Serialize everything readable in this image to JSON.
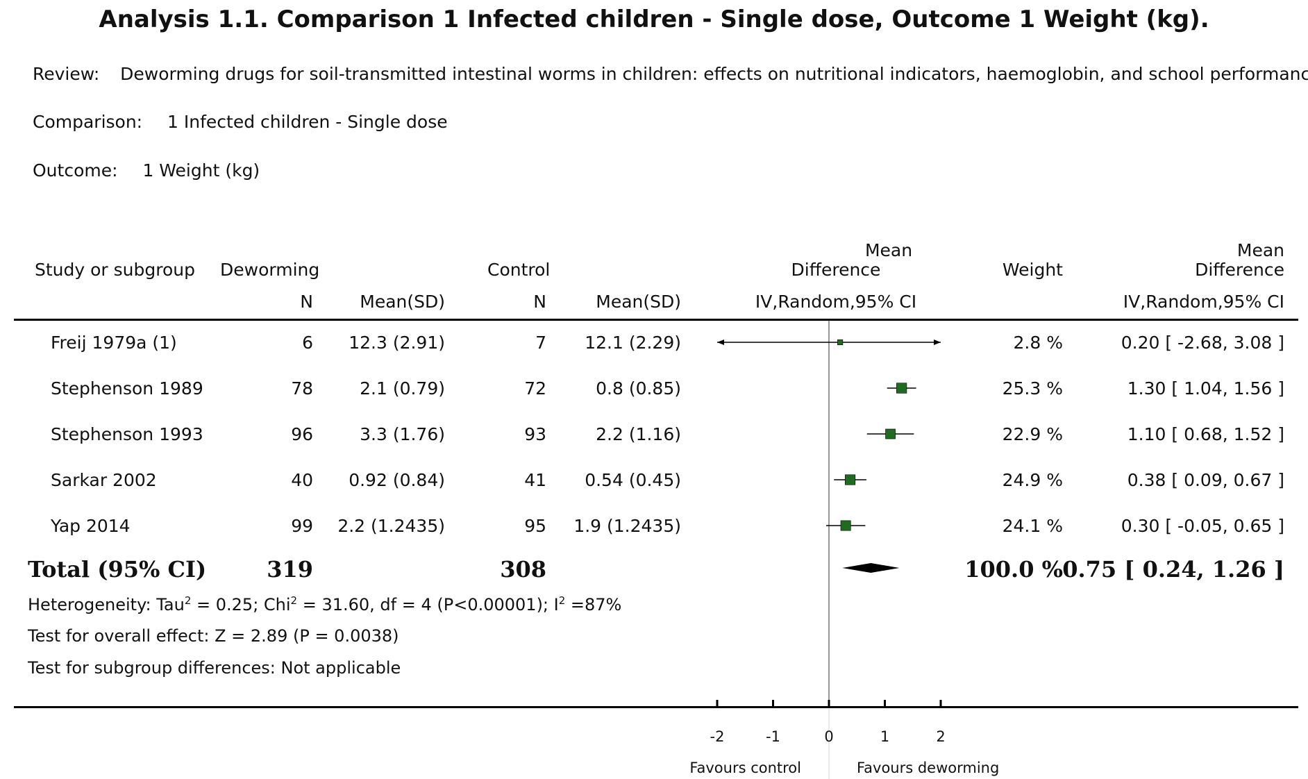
{
  "header": {
    "title": "Analysis 1.1.   Comparison 1 Infected children - Single dose, Outcome 1 Weight (kg).",
    "review_label": "Review:",
    "review_text": "Deworming drugs for soil-transmitted intestinal worms in children: effects on nutritional indicators, haemoglobin, and school performance",
    "comparison_label": "Comparison:",
    "comparison_text": "1 Infected children - Single dose",
    "outcome_label": "Outcome:",
    "outcome_text": "1 Weight (kg)"
  },
  "columns": {
    "study": "Study or subgroup",
    "group1": "Deworming",
    "group2": "Control",
    "n": "N",
    "mean_sd": "Mean(SD)",
    "md_top": "Mean",
    "md_mid": "Difference",
    "md_method": "IV,Random,95% CI",
    "weight": "Weight"
  },
  "colors": {
    "marker": "#1f6b1f",
    "diamond": "#000000"
  },
  "chart_data": {
    "type": "forest",
    "xlim": [
      -2,
      2
    ],
    "xticks": [
      "-2",
      "-1",
      "0",
      "1",
      "2"
    ],
    "xtick_values": [
      -2,
      -1,
      0,
      1,
      2
    ],
    "favours_left": "Favours control",
    "favours_right": "Favours deworming",
    "studies": [
      {
        "name": "Freij 1979a (1)",
        "n1": "6",
        "msd1": "12.3 (2.91)",
        "n2": "7",
        "msd2": "12.1 (2.29)",
        "weight": "2.8 %",
        "ci_text": "0.20 [ -2.68, 3.08 ]",
        "md": 0.2,
        "lo": -2.68,
        "hi": 3.08,
        "w": 2.8
      },
      {
        "name": "Stephenson 1989",
        "n1": "78",
        "msd1": "2.1 (0.79)",
        "n2": "72",
        "msd2": "0.8 (0.85)",
        "weight": "25.3 %",
        "ci_text": "1.30 [ 1.04, 1.56 ]",
        "md": 1.3,
        "lo": 1.04,
        "hi": 1.56,
        "w": 25.3
      },
      {
        "name": "Stephenson 1993",
        "n1": "96",
        "msd1": "3.3 (1.76)",
        "n2": "93",
        "msd2": "2.2 (1.16)",
        "weight": "22.9 %",
        "ci_text": "1.10 [ 0.68, 1.52 ]",
        "md": 1.1,
        "lo": 0.68,
        "hi": 1.52,
        "w": 22.9
      },
      {
        "name": "Sarkar 2002",
        "n1": "40",
        "msd1": "0.92 (0.84)",
        "n2": "41",
        "msd2": "0.54 (0.45)",
        "weight": "24.9 %",
        "ci_text": "0.38 [ 0.09, 0.67 ]",
        "md": 0.38,
        "lo": 0.09,
        "hi": 0.67,
        "w": 24.9
      },
      {
        "name": "Yap 2014",
        "n1": "99",
        "msd1": "2.2 (1.2435)",
        "n2": "95",
        "msd2": "1.9 (1.2435)",
        "weight": "24.1 %",
        "ci_text": "0.30 [ -0.05, 0.65 ]",
        "md": 0.3,
        "lo": -0.05,
        "hi": 0.65,
        "w": 24.1
      }
    ],
    "total": {
      "label": "Total (95% CI)",
      "n1": "319",
      "n2": "308",
      "weight": "100.0 %",
      "ci_text": "0.75 [ 0.24, 1.26 ]",
      "md": 0.75,
      "lo": 0.24,
      "hi": 1.26
    },
    "heterogeneity": {
      "a": "Heterogeneity: Tau",
      "b": " = 0.25; Chi",
      "c": " = 31.60, df = 4 (P<0.00001); I",
      "d": " =87%",
      "sup": "2"
    },
    "overall_effect": "Test for overall effect: Z = 2.89 (P = 0.0038)",
    "subgroup_diff": "Test for subgroup differences: Not applicable"
  }
}
